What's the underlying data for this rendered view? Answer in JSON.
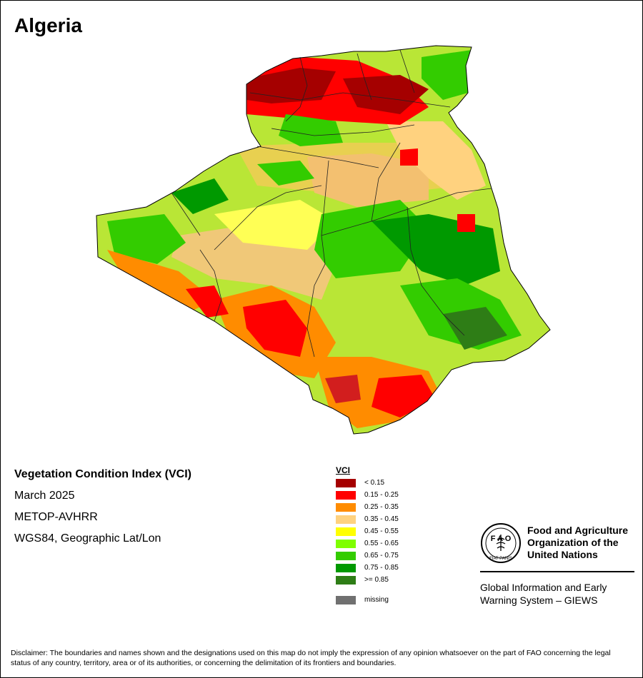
{
  "map": {
    "title": "Algeria",
    "info": {
      "index_name": "Vegetation Condition Index (VCI)",
      "period": "March 2025",
      "sensor": "METOP-AVHRR",
      "projection": "WGS84, Geographic Lat/Lon"
    }
  },
  "legend": {
    "title": "VCI",
    "items": [
      {
        "label": "< 0.15",
        "color": "#a50000"
      },
      {
        "label": "0.15 - 0.25",
        "color": "#ff0000"
      },
      {
        "label": "0.25 - 0.35",
        "color": "#ff8c00"
      },
      {
        "label": "0.35 - 0.45",
        "color": "#ffd27f"
      },
      {
        "label": "0.45 - 0.55",
        "color": "#ffff00"
      },
      {
        "label": "0.55 - 0.65",
        "color": "#7fff00"
      },
      {
        "label": "0.65 - 0.75",
        "color": "#33cc00"
      },
      {
        "label": "0.75 - 0.85",
        "color": "#009900"
      },
      {
        "label": ">= 0.85",
        "color": "#2e7d16"
      }
    ],
    "missing": {
      "label": "missing",
      "color": "#707070"
    }
  },
  "organization": {
    "name_line1": "Food and Agriculture",
    "name_line2": "Organization of the",
    "name_line3": "United Nations",
    "logo_text": "FAO FIAT PANIS",
    "system_line1": "Global Information and Early",
    "system_line2": "Warning System – GIEWS"
  },
  "disclaimer": "Disclaimer: The boundaries and names shown and the designations used on this map do not imply the expression of any opinion whatsoever on the part of FAO concerning the legal status of any country, territory, area or of its authorities, or concerning the delimitation of its frontiers and boundaries."
}
